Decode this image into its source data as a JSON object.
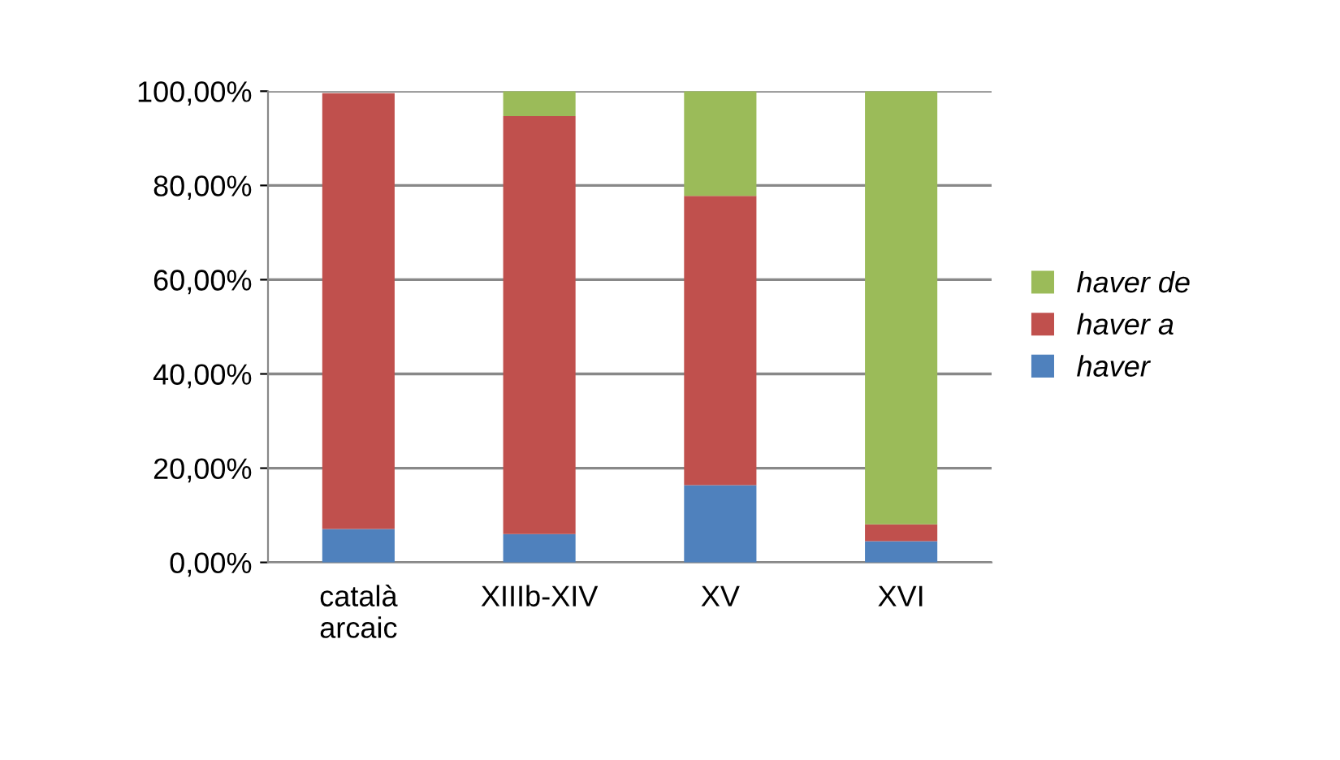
{
  "chart_data": {
    "type": "bar",
    "stacked": true,
    "categories": [
      "català\narcaic",
      "XIIIb-XIV",
      "XV",
      "XVI"
    ],
    "series": [
      {
        "name": "haver",
        "color": "#4f81bd",
        "values": [
          7.1,
          6.0,
          16.4,
          4.5
        ]
      },
      {
        "name": "haver a",
        "color": "#c0504d",
        "values": [
          92.5,
          88.7,
          61.4,
          3.6
        ]
      },
      {
        "name": "haver de",
        "color": "#9bbb59",
        "values": [
          null,
          5.3,
          22.2,
          91.9
        ]
      }
    ],
    "ylim": [
      0,
      100
    ],
    "yticks": [
      {
        "value": 0,
        "label": "0,00%"
      },
      {
        "value": 20,
        "label": "20,00%"
      },
      {
        "value": 40,
        "label": "40,00%"
      },
      {
        "value": 60,
        "label": "60,00%"
      },
      {
        "value": 80,
        "label": "80,00%"
      },
      {
        "value": 100,
        "label": "100,00%"
      }
    ],
    "grid": "y",
    "legend": "right"
  }
}
